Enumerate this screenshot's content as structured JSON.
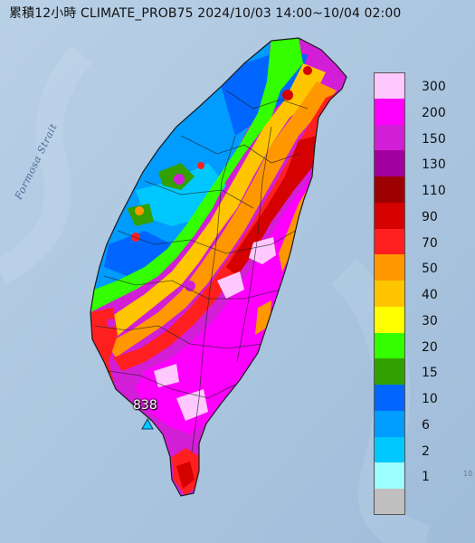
{
  "title": "累積12小時 CLIMATE_PROB75 2024/10/03 14:00~10/04 02:00",
  "sea_label": "Formosa Strait",
  "station": {
    "value_text": "838"
  },
  "legend": {
    "items": [
      {
        "label": "300",
        "color": "#ffc8ff"
      },
      {
        "label": "200",
        "color": "#ff00ff"
      },
      {
        "label": "150",
        "color": "#d21ed6"
      },
      {
        "label": "130",
        "color": "#a1009f"
      },
      {
        "label": "110",
        "color": "#9c0000"
      },
      {
        "label": "90",
        "color": "#d50000"
      },
      {
        "label": "70",
        "color": "#ff1f1f"
      },
      {
        "label": "50",
        "color": "#ff9800"
      },
      {
        "label": "40",
        "color": "#ffc600"
      },
      {
        "label": "30",
        "color": "#fffe00"
      },
      {
        "label": "20",
        "color": "#33ff00"
      },
      {
        "label": "15",
        "color": "#32a000"
      },
      {
        "label": "10",
        "color": "#0066ff"
      },
      {
        "label": "6",
        "color": "#009cff"
      },
      {
        "label": "2",
        "color": "#00c8ff"
      },
      {
        "label": "1",
        "color": "#9cfeff"
      },
      {
        "label": "",
        "color": "#c0c0c0"
      }
    ]
  },
  "corner_text": "10"
}
